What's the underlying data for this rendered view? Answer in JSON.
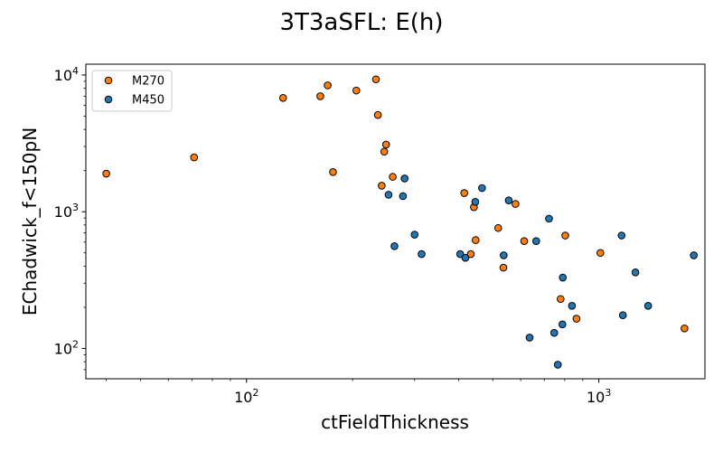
{
  "chart_data": {
    "type": "scatter",
    "title": "3T3aSFL: E(h)",
    "xlabel": "ctFieldThickness",
    "ylabel": "EChadwick_f<150pN",
    "xscale": "log",
    "yscale": "log",
    "xlim": [
      35,
      2000
    ],
    "ylim": [
      60,
      12000
    ],
    "x_ticks": [
      {
        "value": 100,
        "base": "10",
        "exp": "2"
      },
      {
        "value": 1000,
        "base": "10",
        "exp": "3"
      }
    ],
    "y_ticks": [
      {
        "value": 100,
        "base": "10",
        "exp": "2"
      },
      {
        "value": 1000,
        "base": "10",
        "exp": "3"
      },
      {
        "value": 10000,
        "base": "10",
        "exp": "4"
      }
    ],
    "grid": false,
    "legend_position": "top-left",
    "series": [
      {
        "name": "M270",
        "color": "#ff7f0e",
        "points": [
          [
            40,
            1900
          ],
          [
            71,
            2500
          ],
          [
            127,
            6800
          ],
          [
            162,
            7000
          ],
          [
            170,
            8400
          ],
          [
            176,
            1950
          ],
          [
            205,
            7700
          ],
          [
            233,
            9300
          ],
          [
            236,
            5100
          ],
          [
            246,
            2750
          ],
          [
            249,
            3100
          ],
          [
            260,
            1800
          ],
          [
            242,
            1550
          ],
          [
            415,
            1370
          ],
          [
            433,
            490
          ],
          [
            442,
            1080
          ],
          [
            447,
            620
          ],
          [
            518,
            760
          ],
          [
            536,
            390
          ],
          [
            580,
            1140
          ],
          [
            614,
            610
          ],
          [
            779,
            230
          ],
          [
            803,
            670
          ],
          [
            864,
            165
          ],
          [
            1010,
            500
          ],
          [
            1750,
            140
          ]
        ]
      },
      {
        "name": "M450",
        "color": "#1f77b4",
        "points": [
          [
            253,
            1330
          ],
          [
            263,
            560
          ],
          [
            278,
            1300
          ],
          [
            281,
            1750
          ],
          [
            300,
            680
          ],
          [
            314,
            490
          ],
          [
            404,
            490
          ],
          [
            418,
            460
          ],
          [
            446,
            1180
          ],
          [
            466,
            1490
          ],
          [
            537,
            480
          ],
          [
            555,
            1210
          ],
          [
            636,
            120
          ],
          [
            664,
            610
          ],
          [
            722,
            890
          ],
          [
            747,
            130
          ],
          [
            765,
            76
          ],
          [
            788,
            150
          ],
          [
            790,
            330
          ],
          [
            839,
            205
          ],
          [
            1160,
            670
          ],
          [
            1170,
            175
          ],
          [
            1270,
            360
          ],
          [
            1380,
            205
          ],
          [
            1860,
            480
          ]
        ]
      }
    ]
  }
}
